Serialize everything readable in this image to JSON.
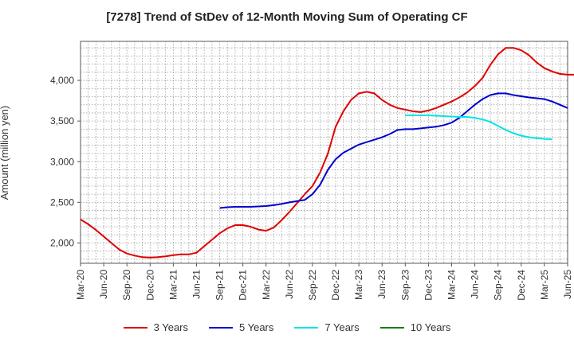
{
  "chart_data": {
    "type": "line",
    "title": "[7278]  Trend of StDev of 12-Month Moving Sum of Operating CF",
    "ylabel": "Amount (million yen)",
    "xlabel": "",
    "ylim": [
      1750,
      4480
    ],
    "yticks": [
      2000,
      2500,
      3000,
      3500,
      4000
    ],
    "ytick_labels": [
      "2,000",
      "2,500",
      "3,000",
      "3,500",
      "4,000"
    ],
    "xtick_labels": [
      "Mar-20",
      "Jun-20",
      "Sep-20",
      "Dec-20",
      "Mar-21",
      "Jun-21",
      "Sep-21",
      "Dec-21",
      "Mar-22",
      "Jun-22",
      "Sep-22",
      "Dec-22",
      "Mar-23",
      "Jun-23",
      "Sep-23",
      "Dec-23",
      "Mar-24",
      "Jun-24",
      "Sep-24",
      "Dec-24",
      "Mar-25",
      "Jun-25"
    ],
    "x_start": "Mar-20",
    "grid": true,
    "legend_position": "bottom",
    "series": [
      {
        "name": "3 Years",
        "color": "#e00000",
        "start_month_index": 0,
        "values": [
          2290,
          2230,
          2160,
          2080,
          2000,
          1920,
          1870,
          1845,
          1825,
          1820,
          1825,
          1835,
          1850,
          1860,
          1860,
          1880,
          1960,
          2040,
          2120,
          2180,
          2220,
          2220,
          2200,
          2165,
          2150,
          2190,
          2280,
          2380,
          2490,
          2600,
          2700,
          2870,
          3100,
          3430,
          3620,
          3760,
          3840,
          3860,
          3840,
          3760,
          3700,
          3660,
          3640,
          3620,
          3610,
          3630,
          3660,
          3700,
          3740,
          3790,
          3850,
          3930,
          4030,
          4190,
          4320,
          4400,
          4400,
          4370,
          4310,
          4220,
          4150,
          4110,
          4080,
          4070,
          4070,
          4075,
          4070
        ]
      },
      {
        "name": "5 Years",
        "color": "#0000cc",
        "start_month_index": 18,
        "values": [
          2430,
          2440,
          2445,
          2445,
          2445,
          2450,
          2455,
          2465,
          2480,
          2500,
          2515,
          2530,
          2600,
          2720,
          2900,
          3030,
          3110,
          3160,
          3210,
          3240,
          3270,
          3300,
          3340,
          3390,
          3400,
          3400,
          3410,
          3420,
          3430,
          3450,
          3480,
          3540,
          3620,
          3700,
          3770,
          3820,
          3840,
          3840,
          3820,
          3805,
          3790,
          3780,
          3770,
          3740,
          3700,
          3660
        ]
      },
      {
        "name": "7 Years",
        "color": "#00e5e5",
        "start_month_index": 42,
        "values": [
          3570,
          3570,
          3570,
          3570,
          3565,
          3560,
          3555,
          3550,
          3550,
          3540,
          3520,
          3490,
          3440,
          3390,
          3350,
          3320,
          3300,
          3290,
          3280,
          3275
        ]
      },
      {
        "name": "10 Years",
        "color": "#008000",
        "start_month_index": 0,
        "values": []
      }
    ]
  }
}
